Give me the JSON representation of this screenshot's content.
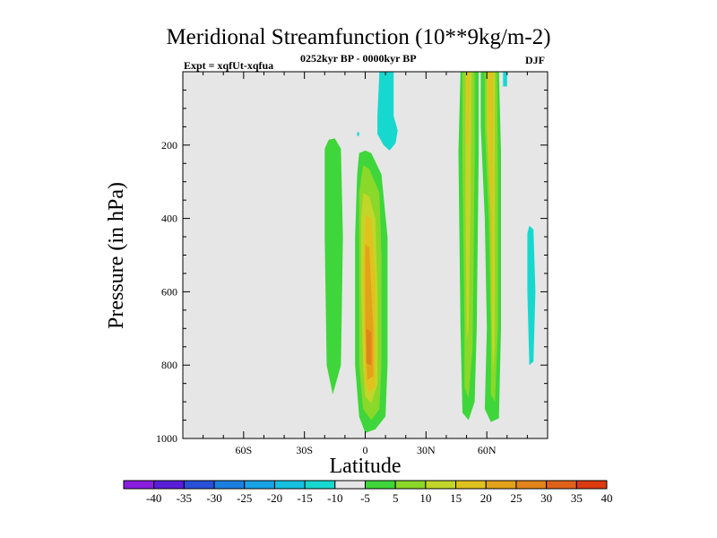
{
  "chart_data": {
    "type": "contour",
    "title": "Meridional Streamfunction (10**9kg/m-2)",
    "subtitle_left": "Expt = xqfUt-xqfua",
    "subtitle_center": "0252kyr BP - 0000kyr BP",
    "subtitle_right": "DJF",
    "xlabel": "Latitude",
    "ylabel": "Pressure (in hPa)",
    "xlim": [
      -90,
      90
    ],
    "ylim": [
      1000,
      0
    ],
    "x_ticks": [
      {
        "value": -60,
        "label": "60S"
      },
      {
        "value": -30,
        "label": "30S"
      },
      {
        "value": 0,
        "label": "0"
      },
      {
        "value": 30,
        "label": "30N"
      },
      {
        "value": 60,
        "label": "60N"
      }
    ],
    "y_ticks": [
      {
        "value": 200,
        "label": "200"
      },
      {
        "value": 400,
        "label": "400"
      },
      {
        "value": 600,
        "label": "600"
      },
      {
        "value": 800,
        "label": "800"
      },
      {
        "value": 1000,
        "label": "1000"
      }
    ],
    "background_color": "#e6e6e6",
    "colorbar": {
      "colors": [
        "#8a1ee0",
        "#5a1ed8",
        "#2a50d8",
        "#1b7fe0",
        "#19a2e6",
        "#16c0e0",
        "#17d8cf",
        "#e6e6e6",
        "#3ed63a",
        "#8ad82a",
        "#c2d62a",
        "#e0c21e",
        "#e2a21a",
        "#e2841a",
        "#e0621a",
        "#dc3a10"
      ],
      "labels": [
        "-40",
        "-35",
        "-30",
        "-25",
        "-20",
        "-15",
        "-10",
        "-5",
        "5",
        "10",
        "15",
        "20",
        "25",
        "30",
        "35",
        "40"
      ]
    },
    "regions": [
      {
        "level": -10,
        "color": "#17d8cf",
        "points": [
          [
            7,
            0
          ],
          [
            14,
            0
          ],
          [
            14,
            120
          ],
          [
            16,
            160
          ],
          [
            15,
            195
          ],
          [
            12,
            215
          ],
          [
            9,
            200
          ],
          [
            6,
            170
          ],
          [
            6,
            120
          ]
        ]
      },
      {
        "level": -10,
        "color": "#17d8cf",
        "points": [
          [
            -4,
            165
          ],
          [
            -3,
            165
          ],
          [
            -3,
            175
          ],
          [
            -4,
            175
          ]
        ]
      },
      {
        "level": -10,
        "color": "#17d8cf",
        "points": [
          [
            68,
            0
          ],
          [
            70,
            0
          ],
          [
            70,
            40
          ],
          [
            68,
            40
          ]
        ]
      },
      {
        "level": -10,
        "color": "#17d8cf",
        "points": [
          [
            81,
            420
          ],
          [
            83,
            430
          ],
          [
            84,
            600
          ],
          [
            83,
            790
          ],
          [
            81,
            800
          ],
          [
            80,
            600
          ],
          [
            80,
            440
          ]
        ]
      },
      {
        "level": 5,
        "color": "#3ed63a",
        "points": [
          [
            -18,
            185
          ],
          [
            -15,
            182
          ],
          [
            -12,
            210
          ],
          [
            -11,
            450
          ],
          [
            -12,
            800
          ],
          [
            -16,
            880
          ],
          [
            -19,
            800
          ],
          [
            -20,
            450
          ],
          [
            -20,
            210
          ]
        ]
      },
      {
        "level": 5,
        "color": "#3ed63a",
        "points": [
          [
            0,
            215
          ],
          [
            3,
            222
          ],
          [
            8,
            280
          ],
          [
            11,
            450
          ],
          [
            11,
            800
          ],
          [
            10,
            940
          ],
          [
            5,
            975
          ],
          [
            0,
            985
          ],
          [
            -3,
            940
          ],
          [
            -5,
            800
          ],
          [
            -5,
            450
          ],
          [
            -4,
            280
          ],
          [
            -3,
            222
          ]
        ]
      },
      {
        "level": 10,
        "color": "#8ad82a",
        "points": [
          [
            -1,
            255
          ],
          [
            2,
            265
          ],
          [
            7,
            330
          ],
          [
            8,
            500
          ],
          [
            8,
            800
          ],
          [
            7,
            920
          ],
          [
            3,
            950
          ],
          [
            -1,
            920
          ],
          [
            -3,
            800
          ],
          [
            -3,
            500
          ],
          [
            -3,
            330
          ]
        ]
      },
      {
        "level": 15,
        "color": "#c2d62a",
        "points": [
          [
            -1,
            330
          ],
          [
            2,
            340
          ],
          [
            5,
            400
          ],
          [
            6,
            600
          ],
          [
            6,
            850
          ],
          [
            3,
            905
          ],
          [
            0,
            885
          ],
          [
            -1,
            800
          ],
          [
            -2,
            600
          ],
          [
            -2,
            400
          ]
        ]
      },
      {
        "level": 20,
        "color": "#e0c21e",
        "points": [
          [
            0,
            390
          ],
          [
            3,
            400
          ],
          [
            5,
            560
          ],
          [
            5,
            860
          ],
          [
            2,
            875
          ],
          [
            0,
            850
          ],
          [
            -1,
            560
          ]
        ]
      },
      {
        "level": 25,
        "color": "#e2a21a",
        "points": [
          [
            0,
            470
          ],
          [
            2,
            480
          ],
          [
            4,
            700
          ],
          [
            4,
            830
          ],
          [
            1,
            840
          ],
          [
            0,
            700
          ]
        ]
      },
      {
        "level": 30,
        "color": "#e2841a",
        "points": [
          [
            0.5,
            700
          ],
          [
            3,
            710
          ],
          [
            3,
            800
          ],
          [
            0.5,
            795
          ]
        ]
      },
      {
        "level": 5,
        "color": "#3ed63a",
        "points": [
          [
            47,
            0
          ],
          [
            56,
            0
          ],
          [
            56,
            220
          ],
          [
            55,
            700
          ],
          [
            54,
            900
          ],
          [
            51,
            950
          ],
          [
            48,
            930
          ],
          [
            47,
            700
          ],
          [
            46,
            220
          ]
        ]
      },
      {
        "level": 10,
        "color": "#8ad82a",
        "points": [
          [
            48,
            0
          ],
          [
            54,
            0
          ],
          [
            54,
            250
          ],
          [
            53,
            750
          ],
          [
            51,
            890
          ],
          [
            49,
            860
          ],
          [
            49,
            700
          ],
          [
            48,
            250
          ]
        ]
      },
      {
        "level": 15,
        "color": "#c2d62a",
        "points": [
          [
            49.5,
            0
          ],
          [
            52.5,
            0
          ],
          [
            52,
            350
          ],
          [
            51,
            700
          ],
          [
            50,
            730
          ],
          [
            49.5,
            350
          ]
        ]
      },
      {
        "level": 20,
        "color": "#e0c21e",
        "points": [
          [
            50,
            0
          ],
          [
            51.5,
            0
          ],
          [
            51,
            200
          ],
          [
            50,
            200
          ]
        ]
      },
      {
        "level": 5,
        "color": "#3ed63a",
        "points": [
          [
            57,
            0
          ],
          [
            66,
            0
          ],
          [
            67,
            220
          ],
          [
            67,
            700
          ],
          [
            66,
            945
          ],
          [
            62,
            955
          ],
          [
            59,
            920
          ],
          [
            60,
            700
          ],
          [
            59,
            400
          ],
          [
            57,
            150
          ]
        ]
      },
      {
        "level": 10,
        "color": "#8ad82a",
        "points": [
          [
            59,
            0
          ],
          [
            65,
            0
          ],
          [
            65.5,
            250
          ],
          [
            65.5,
            700
          ],
          [
            64,
            900
          ],
          [
            62,
            880
          ],
          [
            62,
            700
          ],
          [
            61,
            400
          ],
          [
            59,
            150
          ]
        ]
      },
      {
        "level": 15,
        "color": "#c2d62a",
        "points": [
          [
            60,
            0
          ],
          [
            64,
            0
          ],
          [
            64,
            300
          ],
          [
            64,
            750
          ],
          [
            63,
            820
          ],
          [
            62.5,
            700
          ],
          [
            62,
            400
          ],
          [
            60,
            150
          ]
        ]
      },
      {
        "level": 20,
        "color": "#e0c21e",
        "points": [
          [
            60.5,
            0
          ],
          [
            63,
            0
          ],
          [
            63,
            300
          ],
          [
            63,
            600
          ],
          [
            62.5,
            640
          ],
          [
            62,
            400
          ],
          [
            61,
            130
          ]
        ]
      }
    ]
  }
}
